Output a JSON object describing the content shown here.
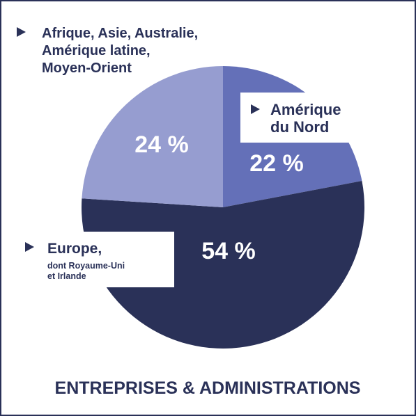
{
  "chart_data": {
    "type": "pie",
    "title": "ENTREPRISES & ADMINISTRATIONS",
    "categories": [
      [
        "Amérique",
        "du Nord"
      ],
      [
        "Europe,"
      ],
      [
        "Afrique, Asie, Australie,",
        "Amérique latine,",
        "Moyen-Orient"
      ]
    ],
    "notes": [
      null,
      [
        "dont Royaume-Uni",
        "et Irlande"
      ],
      null
    ],
    "values": [
      22,
      54,
      24
    ],
    "value_labels": [
      "22 %",
      "54 %",
      "24 %"
    ],
    "colors": [
      "#6470b8",
      "#2a3158",
      "#969dd0"
    ]
  }
}
